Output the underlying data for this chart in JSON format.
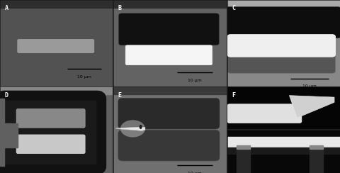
{
  "figsize": [
    4.8,
    2.44
  ],
  "dpi": 100,
  "panels": [
    "A",
    "B",
    "C",
    "D",
    "E",
    "F"
  ],
  "label_fontsize": 6,
  "scalebar_fontsize": 4.5,
  "bg_A": "#525252",
  "bg_B": "#636363",
  "bg_C": "#888888",
  "bg_D": "#606060",
  "bg_E": "#707070",
  "bg_F_top": "#080808",
  "bg_F_bot": "#101010",
  "sep_color": "#2a2a2a",
  "scalebar_color": "#000000"
}
